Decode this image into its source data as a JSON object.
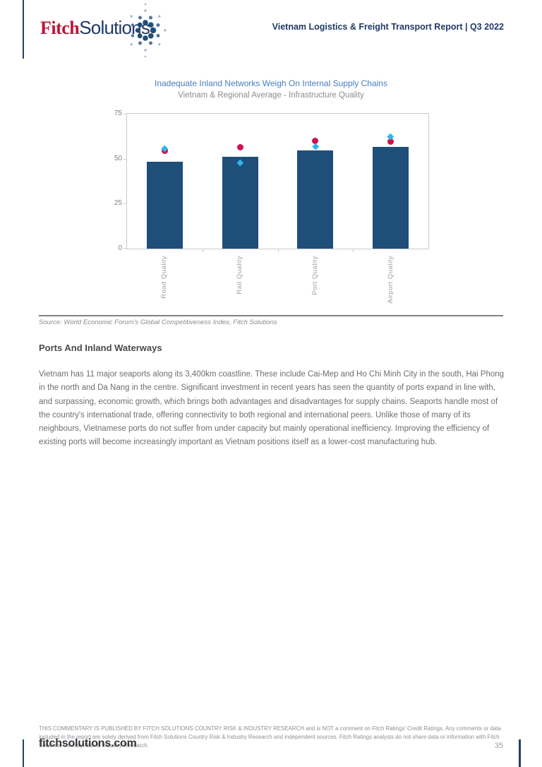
{
  "header": {
    "logo_fitch": "Fitch",
    "logo_solutions": "Solutions",
    "report_title": "Vietnam Logistics & Freight Transport Report | Q3 2022"
  },
  "chart": {
    "title": "Inadequate Inland Networks Weigh On Internal Supply Chains",
    "subtitle": "Vietnam & Regional Average - Infrastructure Quality",
    "source": "Source: World Economic Forum's Global Competitiveness Index, Fitch Solutions"
  },
  "chart_data": {
    "type": "bar",
    "categories": [
      "Road Quality",
      "Rail Quality",
      "Port Quality",
      "Airport Quality"
    ],
    "series": [
      {
        "name": "Infrastructure quality score (navy bars)",
        "type": "bar",
        "color": "#1f4e79",
        "values": [
          48.5,
          51,
          54.5,
          56.5
        ]
      },
      {
        "name": "Red circle marker series",
        "type": "scatter",
        "marker": "circle",
        "color": "#d40f4a",
        "values": [
          54.5,
          56.5,
          60,
          59.5
        ]
      },
      {
        "name": "Cyan diamond marker series",
        "type": "scatter",
        "marker": "diamond",
        "color": "#2cb7ea",
        "values": [
          55.5,
          48,
          57,
          62.5
        ]
      }
    ],
    "title": "Inadequate Inland Networks Weigh On Internal Supply Chains",
    "subtitle": "Vietnam & Regional Average - Infrastructure Quality",
    "xlabel": "",
    "ylabel": "",
    "ylim": [
      0,
      75
    ],
    "yticks": [
      0,
      25,
      50,
      75
    ],
    "grid": false,
    "legend": false
  },
  "article": {
    "heading": "Ports And Inland Waterways",
    "body": "Vietnam has 11 major seaports along its 3,400km coastline. These include Cai-Mep and Ho Chi Minh City in the south, Hai Phong in the north and Da Nang in the centre. Significant investment in recent years has seen the quantity of ports expand in line with, and surpassing, economic growth, which brings both advantages and disadvantages for supply chains. Seaports handle most of the country's international trade, offering connectivity to both regional and international peers. Unlike those of many of its neighbours, Vietnamese ports do not suffer from under capacity but mainly operational inefficiency. Improving the efficiency of existing ports will become increasingly important as Vietnam positions itself as a lower-cost manufacturing hub."
  },
  "footer": {
    "disclaimer": "THIS COMMENTARY IS PUBLISHED BY FITCH SOLUTIONS COUNTRY RISK & INDUSTRY RESEARCH and is NOT a comment on Fitch Ratings' Credit Ratings. Any comments or data included in the report are solely derived from Fitch Solutions Country Risk & Industry Research and independent sources. Fitch Ratings analysts do not share data or information with Fitch Solutions Country Risk & Industry Research.",
    "site": "fitchsolutions.com",
    "page_number": "35"
  },
  "colors": {
    "brand_navy": "#203a64",
    "brand_red": "#c31238",
    "bar_navy": "#1f4e79",
    "marker_red": "#d40f4a",
    "marker_cyan": "#2cb7ea",
    "title_blue": "#477fbf",
    "accent_line": "#24406b"
  }
}
